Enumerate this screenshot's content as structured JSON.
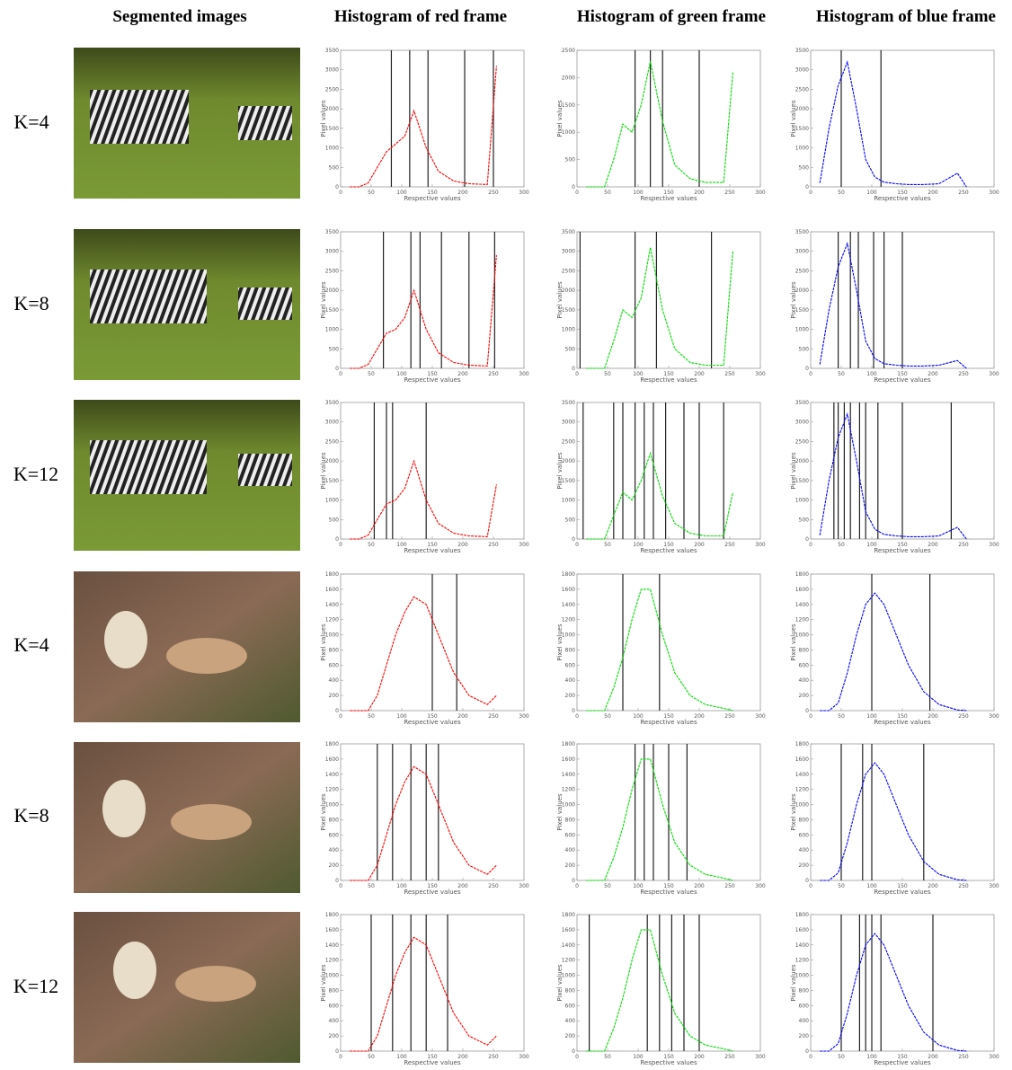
{
  "headers": [
    "Segmented images",
    "Histogram of red frame",
    "Histogram of green frame",
    "Histogram of blue frame"
  ],
  "row_labels": [
    "K=4",
    "K=8",
    "K=12",
    "K=4",
    "K=8",
    "K=12"
  ],
  "chart_data": [
    {
      "type": "line",
      "color": "#ff0000",
      "xlabel": "Respective values",
      "ylabel": "Pixel values",
      "x": [
        15,
        30,
        45,
        60,
        75,
        90,
        105,
        120,
        140,
        160,
        185,
        210,
        240,
        255
      ],
      "values": [
        0,
        0,
        100,
        500,
        900,
        1100,
        1300,
        1950,
        1000,
        400,
        150,
        80,
        60,
        3100
      ],
      "thresholds": [
        83,
        113,
        143,
        203,
        250
      ],
      "xlim": [
        0,
        300
      ],
      "ylim": [
        0,
        3500
      ],
      "xticks": [
        0,
        50,
        100,
        150,
        200,
        250,
        300
      ],
      "yticks": [
        0,
        500,
        1000,
        1500,
        2000,
        2500,
        3000,
        3500
      ]
    },
    {
      "type": "line",
      "color": "#00dd00",
      "xlabel": "Respective values",
      "ylabel": "Pixel values",
      "x": [
        15,
        30,
        45,
        60,
        75,
        90,
        105,
        120,
        140,
        160,
        185,
        210,
        240,
        255
      ],
      "values": [
        0,
        0,
        0,
        500,
        1150,
        1000,
        1500,
        2300,
        1200,
        400,
        150,
        80,
        80,
        2100
      ],
      "thresholds": [
        95,
        120,
        140,
        200
      ],
      "xlim": [
        0,
        300
      ],
      "ylim": [
        0,
        2500
      ],
      "xticks": [
        0,
        50,
        100,
        150,
        200,
        250,
        300
      ],
      "yticks": [
        0,
        500,
        1000,
        1500,
        2000,
        2500
      ]
    },
    {
      "type": "line",
      "color": "#0000ff",
      "xlabel": "Respective values",
      "ylabel": "Pixel values",
      "x": [
        15,
        30,
        45,
        60,
        75,
        90,
        105,
        120,
        140,
        160,
        185,
        210,
        240,
        255
      ],
      "values": [
        100,
        1500,
        2600,
        3200,
        2000,
        700,
        250,
        120,
        80,
        60,
        60,
        80,
        350,
        0
      ],
      "thresholds": [
        50,
        115
      ],
      "xlim": [
        0,
        300
      ],
      "ylim": [
        0,
        3500
      ],
      "xticks": [
        0,
        50,
        100,
        150,
        200,
        250,
        300
      ],
      "yticks": [
        0,
        500,
        1000,
        1500,
        2000,
        2500,
        3000,
        3500
      ]
    },
    {
      "type": "line",
      "color": "#ff0000",
      "xlabel": "Respective values",
      "ylabel": "Pixel values",
      "x": [
        15,
        30,
        45,
        60,
        75,
        90,
        105,
        120,
        140,
        160,
        185,
        210,
        240,
        255
      ],
      "values": [
        0,
        0,
        100,
        500,
        900,
        1000,
        1300,
        2000,
        1000,
        400,
        150,
        80,
        60,
        2900
      ],
      "thresholds": [
        70,
        115,
        130,
        165,
        210,
        252
      ],
      "xlim": [
        0,
        300
      ],
      "ylim": [
        0,
        3500
      ],
      "xticks": [
        0,
        50,
        100,
        150,
        200,
        250,
        300
      ],
      "yticks": [
        0,
        500,
        1000,
        1500,
        2000,
        2500,
        3000,
        3500
      ]
    },
    {
      "type": "line",
      "color": "#00dd00",
      "xlabel": "Respective values",
      "ylabel": "Pixel values",
      "x": [
        15,
        30,
        45,
        60,
        75,
        90,
        105,
        120,
        140,
        160,
        185,
        210,
        240,
        255
      ],
      "values": [
        0,
        0,
        0,
        700,
        1500,
        1300,
        1800,
        3100,
        1500,
        500,
        150,
        80,
        80,
        3000
      ],
      "thresholds": [
        5,
        95,
        130,
        220
      ],
      "xlim": [
        0,
        300
      ],
      "ylim": [
        0,
        3500
      ],
      "xticks": [
        0,
        50,
        100,
        150,
        200,
        250,
        300
      ],
      "yticks": [
        0,
        500,
        1000,
        1500,
        2000,
        2500,
        3000,
        3500
      ]
    },
    {
      "type": "line",
      "color": "#0000ff",
      "xlabel": "Respective values",
      "ylabel": "Pixel values",
      "x": [
        15,
        30,
        45,
        60,
        75,
        90,
        105,
        120,
        140,
        160,
        185,
        210,
        240,
        255
      ],
      "values": [
        100,
        1500,
        2600,
        3200,
        2000,
        700,
        250,
        120,
        80,
        60,
        60,
        80,
        200,
        0
      ],
      "thresholds": [
        45,
        65,
        78,
        103,
        120,
        150
      ],
      "xlim": [
        0,
        300
      ],
      "ylim": [
        0,
        3500
      ],
      "xticks": [
        0,
        50,
        100,
        150,
        200,
        250,
        300
      ],
      "yticks": [
        0,
        500,
        1000,
        1500,
        2000,
        2500,
        3000,
        3500
      ]
    },
    {
      "type": "line",
      "color": "#ff0000",
      "xlabel": "Respective values",
      "ylabel": "Pixel values",
      "x": [
        15,
        30,
        45,
        60,
        75,
        90,
        105,
        120,
        140,
        160,
        185,
        210,
        240,
        255
      ],
      "values": [
        0,
        0,
        100,
        500,
        900,
        1000,
        1300,
        2000,
        1000,
        400,
        150,
        80,
        60,
        1400
      ],
      "thresholds": [
        55,
        75,
        85,
        140
      ],
      "xlim": [
        0,
        300
      ],
      "ylim": [
        0,
        3500
      ],
      "xticks": [
        0,
        50,
        100,
        150,
        200,
        250,
        300
      ],
      "yticks": [
        0,
        500,
        1000,
        1500,
        2000,
        2500,
        3000,
        3500
      ]
    },
    {
      "type": "line",
      "color": "#00dd00",
      "xlabel": "Respective values",
      "ylabel": "Pixel values",
      "x": [
        15,
        30,
        45,
        60,
        75,
        90,
        105,
        120,
        140,
        160,
        185,
        210,
        240,
        255
      ],
      "values": [
        0,
        0,
        0,
        600,
        1200,
        1000,
        1500,
        2200,
        1100,
        400,
        150,
        80,
        80,
        1200
      ],
      "thresholds": [
        10,
        60,
        75,
        95,
        110,
        125,
        145,
        175,
        200,
        240
      ],
      "xlim": [
        0,
        300
      ],
      "ylim": [
        0,
        3500
      ],
      "xticks": [
        0,
        50,
        100,
        150,
        200,
        250,
        300
      ],
      "yticks": [
        0,
        500,
        1000,
        1500,
        2000,
        2500,
        3000,
        3500
      ]
    },
    {
      "type": "line",
      "color": "#0000ff",
      "xlabel": "Respective values",
      "ylabel": "Pixel values",
      "x": [
        15,
        30,
        45,
        60,
        75,
        90,
        105,
        120,
        140,
        160,
        185,
        210,
        240,
        255
      ],
      "values": [
        100,
        1500,
        2600,
        3200,
        2000,
        700,
        250,
        120,
        80,
        60,
        60,
        80,
        300,
        0
      ],
      "thresholds": [
        38,
        45,
        55,
        65,
        80,
        90,
        110,
        150,
        230
      ],
      "xlim": [
        0,
        300
      ],
      "ylim": [
        0,
        3500
      ],
      "xticks": [
        0,
        50,
        100,
        150,
        200,
        250,
        300
      ],
      "yticks": [
        0,
        500,
        1000,
        1500,
        2000,
        2500,
        3000,
        3500
      ]
    },
    {
      "type": "line",
      "color": "#ff0000",
      "xlabel": "Respective values",
      "ylabel": "Pixel values",
      "x": [
        15,
        30,
        45,
        60,
        75,
        90,
        105,
        120,
        140,
        160,
        185,
        210,
        240,
        255
      ],
      "values": [
        0,
        0,
        0,
        200,
        600,
        1000,
        1300,
        1500,
        1400,
        1000,
        500,
        200,
        80,
        200
      ],
      "thresholds": [
        150,
        190
      ],
      "xlim": [
        0,
        300
      ],
      "ylim": [
        0,
        1800
      ],
      "xticks": [
        0,
        50,
        100,
        150,
        200,
        250,
        300
      ],
      "yticks": [
        0,
        200,
        400,
        600,
        800,
        1000,
        1200,
        1400,
        1600,
        1800
      ]
    },
    {
      "type": "line",
      "color": "#00dd00",
      "xlabel": "Respective values",
      "ylabel": "Pixel values",
      "x": [
        15,
        30,
        45,
        60,
        75,
        90,
        105,
        120,
        140,
        160,
        185,
        210,
        240,
        255
      ],
      "values": [
        0,
        0,
        0,
        300,
        700,
        1200,
        1600,
        1600,
        1000,
        500,
        200,
        80,
        30,
        0
      ],
      "thresholds": [
        75,
        135
      ],
      "xlim": [
        0,
        300
      ],
      "ylim": [
        0,
        1800
      ],
      "xticks": [
        0,
        50,
        100,
        150,
        200,
        250,
        300
      ],
      "yticks": [
        0,
        200,
        400,
        600,
        800,
        1000,
        1200,
        1400,
        1600,
        1800
      ]
    },
    {
      "type": "line",
      "color": "#0000ff",
      "xlabel": "Respective values",
      "ylabel": "Pixel values",
      "x": [
        15,
        30,
        45,
        60,
        75,
        90,
        105,
        120,
        140,
        160,
        185,
        210,
        240,
        255
      ],
      "values": [
        0,
        0,
        100,
        500,
        1000,
        1400,
        1550,
        1400,
        1000,
        600,
        250,
        80,
        10,
        0
      ],
      "thresholds": [
        100,
        195
      ],
      "xlim": [
        0,
        300
      ],
      "ylim": [
        0,
        1800
      ],
      "xticks": [
        0,
        50,
        100,
        150,
        200,
        250,
        300
      ],
      "yticks": [
        0,
        200,
        400,
        600,
        800,
        1000,
        1200,
        1400,
        1600,
        1800
      ]
    },
    {
      "type": "line",
      "color": "#ff0000",
      "xlabel": "Respective values",
      "ylabel": "Pixel values",
      "x": [
        15,
        30,
        45,
        60,
        75,
        90,
        105,
        120,
        140,
        160,
        185,
        210,
        240,
        255
      ],
      "values": [
        0,
        0,
        0,
        200,
        600,
        1000,
        1300,
        1500,
        1400,
        1000,
        500,
        200,
        80,
        200
      ],
      "thresholds": [
        60,
        85,
        115,
        140,
        160
      ],
      "xlim": [
        0,
        300
      ],
      "ylim": [
        0,
        1800
      ],
      "xticks": [
        0,
        50,
        100,
        150,
        200,
        250,
        300
      ],
      "yticks": [
        0,
        200,
        400,
        600,
        800,
        1000,
        1200,
        1400,
        1600,
        1800
      ]
    },
    {
      "type": "line",
      "color": "#00dd00",
      "xlabel": "Respective values",
      "ylabel": "Pixel values",
      "x": [
        15,
        30,
        45,
        60,
        75,
        90,
        105,
        120,
        140,
        160,
        185,
        210,
        240,
        255
      ],
      "values": [
        0,
        0,
        0,
        300,
        700,
        1200,
        1600,
        1600,
        1000,
        500,
        200,
        80,
        30,
        0
      ],
      "thresholds": [
        95,
        110,
        125,
        150,
        180
      ],
      "xlim": [
        0,
        300
      ],
      "ylim": [
        0,
        1800
      ],
      "xticks": [
        0,
        50,
        100,
        150,
        200,
        250,
        300
      ],
      "yticks": [
        0,
        200,
        400,
        600,
        800,
        1000,
        1200,
        1400,
        1600,
        1800
      ]
    },
    {
      "type": "line",
      "color": "#0000ff",
      "xlabel": "Respective values",
      "ylabel": "Pixel values",
      "x": [
        15,
        30,
        45,
        60,
        75,
        90,
        105,
        120,
        140,
        160,
        185,
        210,
        240,
        255
      ],
      "values": [
        0,
        0,
        100,
        500,
        1000,
        1400,
        1550,
        1400,
        1000,
        600,
        250,
        80,
        10,
        0
      ],
      "thresholds": [
        50,
        85,
        100,
        185
      ],
      "xlim": [
        0,
        300
      ],
      "ylim": [
        0,
        1800
      ],
      "xticks": [
        0,
        50,
        100,
        150,
        200,
        250,
        300
      ],
      "yticks": [
        0,
        200,
        400,
        600,
        800,
        1000,
        1200,
        1400,
        1600,
        1800
      ]
    },
    {
      "type": "line",
      "color": "#ff0000",
      "xlabel": "Respective values",
      "ylabel": "Pixel values",
      "x": [
        15,
        30,
        45,
        60,
        75,
        90,
        105,
        120,
        140,
        160,
        185,
        210,
        240,
        255
      ],
      "values": [
        0,
        0,
        0,
        200,
        600,
        1000,
        1300,
        1500,
        1400,
        1000,
        500,
        200,
        80,
        200
      ],
      "thresholds": [
        50,
        85,
        115,
        140,
        175
      ],
      "xlim": [
        0,
        300
      ],
      "ylim": [
        0,
        1800
      ],
      "xticks": [
        0,
        50,
        100,
        150,
        200,
        250,
        300
      ],
      "yticks": [
        0,
        200,
        400,
        600,
        800,
        1000,
        1200,
        1400,
        1600,
        1800
      ]
    },
    {
      "type": "line",
      "color": "#00dd00",
      "xlabel": "Respective values",
      "ylabel": "Pixel values",
      "x": [
        15,
        30,
        45,
        60,
        75,
        90,
        105,
        120,
        140,
        160,
        185,
        210,
        240,
        255
      ],
      "values": [
        0,
        0,
        0,
        300,
        700,
        1200,
        1600,
        1600,
        1000,
        500,
        200,
        80,
        30,
        0
      ],
      "thresholds": [
        20,
        115,
        135,
        155,
        175,
        200
      ],
      "xlim": [
        0,
        300
      ],
      "ylim": [
        0,
        1800
      ],
      "xticks": [
        0,
        50,
        100,
        150,
        200,
        250,
        300
      ],
      "yticks": [
        0,
        200,
        400,
        600,
        800,
        1000,
        1200,
        1400,
        1600,
        1800
      ]
    },
    {
      "type": "line",
      "color": "#0000ff",
      "xlabel": "Respective values",
      "ylabel": "Pixel values",
      "x": [
        15,
        30,
        45,
        60,
        75,
        90,
        105,
        120,
        140,
        160,
        185,
        210,
        240,
        255
      ],
      "values": [
        0,
        0,
        100,
        500,
        1000,
        1400,
        1550,
        1400,
        1000,
        600,
        250,
        80,
        10,
        0
      ],
      "thresholds": [
        50,
        80,
        90,
        100,
        115,
        200
      ],
      "xlim": [
        0,
        300
      ],
      "ylim": [
        0,
        1800
      ],
      "xticks": [
        0,
        50,
        100,
        150,
        200,
        250,
        300
      ],
      "yticks": [
        0,
        200,
        400,
        600,
        800,
        1000,
        1200,
        1400,
        1600,
        1800
      ]
    }
  ]
}
